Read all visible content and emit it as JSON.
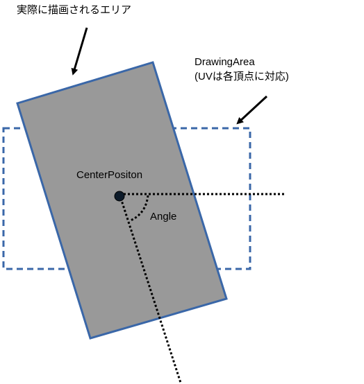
{
  "labels": {
    "drawn_area": "実際に描画されるエリア",
    "drawing_area_title": "DrawingArea",
    "drawing_area_note": "(UVは各頂点に対応)",
    "center_position": "CenterPositon",
    "angle": "Angle"
  },
  "colors": {
    "background": "#ffffff",
    "rect_fill": "#999999",
    "rect_stroke": "#3a67a8",
    "dashed_stroke": "#3a67a8",
    "text": "#000000",
    "center_point": "#0d1b2a"
  },
  "diagram": {
    "elements": [
      "rotated-rectangle",
      "dashed-drawing-area",
      "center-point",
      "horizontal-reference-line",
      "rotated-axis-line",
      "angle-arc",
      "arrow-to-drawn-area",
      "arrow-to-drawing-area"
    ]
  }
}
